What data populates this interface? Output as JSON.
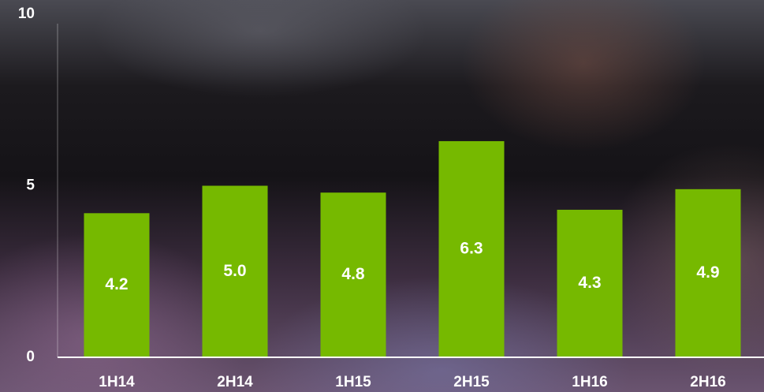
{
  "chart_data": {
    "type": "bar",
    "categories": [
      "1H14",
      "2H14",
      "1H15",
      "2H15",
      "1H16",
      "2H16"
    ],
    "values": [
      4.2,
      5.0,
      4.8,
      6.3,
      4.3,
      4.9
    ],
    "value_labels": [
      "4.2",
      "5.0",
      "4.8",
      "6.3",
      "4.3",
      "4.9"
    ],
    "color": "#76b900",
    "ylim": [
      0,
      10
    ],
    "yticks": [
      0,
      5,
      10
    ]
  }
}
